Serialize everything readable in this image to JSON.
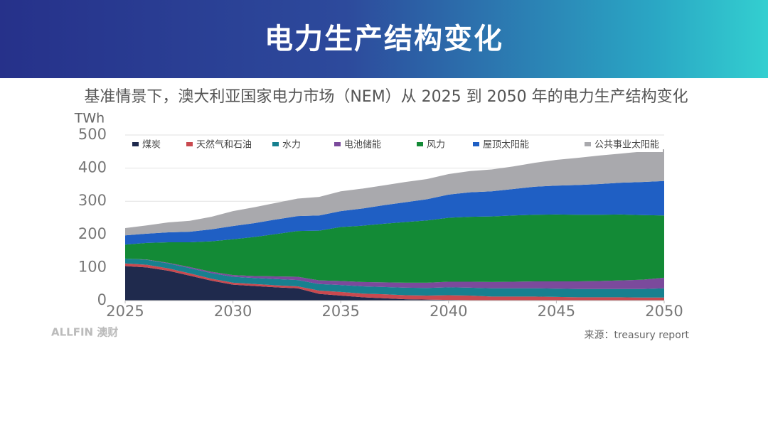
{
  "header": {
    "title": "电力生产结构变化"
  },
  "chart_data": {
    "type": "stacked_area",
    "title": "基准情景下，澳大利亚国家电力市场（NEM）从 2025 到 2050 年的电力生产结构变化",
    "y_label": "TWh",
    "x": [
      2025,
      2026,
      2027,
      2028,
      2029,
      2030,
      2031,
      2032,
      2033,
      2034,
      2035,
      2036,
      2037,
      2038,
      2039,
      2040,
      2041,
      2042,
      2043,
      2044,
      2045,
      2046,
      2047,
      2048,
      2049,
      2050
    ],
    "xlim": [
      2025,
      2050
    ],
    "xticks": [
      2025,
      2030,
      2035,
      2040,
      2045,
      2050
    ],
    "ylim": [
      0,
      500
    ],
    "yticks": [
      0,
      100,
      200,
      300,
      400,
      500
    ],
    "grid": true,
    "legend": "top",
    "series": [
      {
        "name": "煤炭",
        "color": "#1f2a4d",
        "values": [
          104,
          100,
          90,
          75,
          60,
          48,
          44,
          40,
          37,
          20,
          15,
          10,
          7,
          4,
          3,
          2,
          1,
          0,
          0,
          0,
          0,
          0,
          0,
          0,
          0,
          0
        ]
      },
      {
        "name": "天然气和石油",
        "color": "#c9494f",
        "values": [
          8,
          8,
          7,
          7,
          6,
          6,
          6,
          6,
          6,
          10,
          11,
          11,
          12,
          12,
          12,
          14,
          14,
          12,
          12,
          12,
          11,
          10,
          10,
          10,
          9,
          9
        ]
      },
      {
        "name": "水力",
        "color": "#17808f",
        "values": [
          15,
          15,
          15,
          16,
          17,
          18,
          18,
          19,
          19,
          20,
          21,
          22,
          22,
          23,
          23,
          24,
          24,
          25,
          25,
          25,
          25,
          25,
          25,
          25,
          26,
          28
        ]
      },
      {
        "name": "电池储能",
        "color": "#7b4a9c",
        "values": [
          0,
          1,
          2,
          3,
          4,
          5,
          6,
          8,
          10,
          11,
          12,
          13,
          14,
          15,
          16,
          17,
          18,
          19,
          20,
          21,
          22,
          23,
          24,
          26,
          28,
          32
        ]
      },
      {
        "name": "风力",
        "color": "#138a36",
        "values": [
          42,
          50,
          62,
          75,
          92,
          108,
          118,
          128,
          138,
          150,
          163,
          170,
          177,
          183,
          188,
          193,
          196,
          198,
          200,
          201,
          202,
          201,
          200,
          199,
          195,
          188
        ]
      },
      {
        "name": "屋顶太阳能",
        "color": "#1f5fc4",
        "values": [
          28,
          28,
          30,
          32,
          36,
          40,
          42,
          44,
          45,
          46,
          48,
          52,
          56,
          60,
          64,
          70,
          74,
          76,
          80,
          85,
          87,
          90,
          93,
          96,
          100,
          104
        ]
      },
      {
        "name": "公共事业太阳能",
        "color": "#a9a9ad",
        "values": [
          22,
          25,
          30,
          33,
          38,
          45,
          48,
          50,
          53,
          56,
          60,
          60,
          60,
          61,
          61,
          62,
          64,
          66,
          68,
          72,
          78,
          82,
          86,
          88,
          92,
          96
        ]
      }
    ]
  },
  "footer": {
    "logo": "ALLFIN 澳财",
    "source": "来源：treasury report"
  }
}
